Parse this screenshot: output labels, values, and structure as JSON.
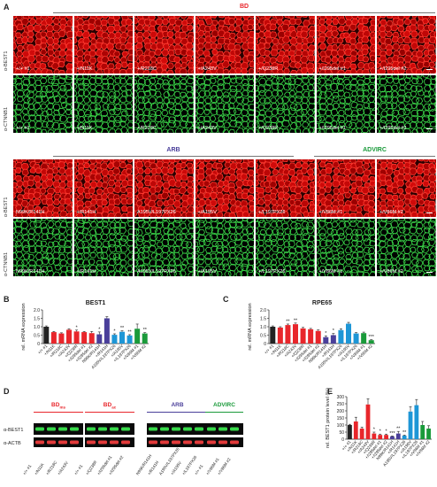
{
  "panel_a": {
    "letter": "A",
    "block1": {
      "group_label": "BD",
      "group_color": "#e8262b",
      "row_labels": [
        "α-BEST1",
        "α-CTNNB1"
      ],
      "tiles": [
        "+/+ #1",
        "+/N11K",
        "+/R218C",
        "+/A243V",
        "+/Q238R",
        "+/I295del #1",
        "+/I295del #2"
      ]
    },
    "block2": {
      "groups": [
        {
          "label": "ARB",
          "color": "#4a3f9a"
        },
        {
          "label": "ADVIRC",
          "color": "#1a9a3a"
        }
      ],
      "row_labels": [
        "α-BEST1",
        "α-CTNNB1"
      ],
      "tiles": [
        "N99K/R141H",
        "+/R141H",
        "A195V/L197PX26",
        "+/A195V",
        "+/L197PX26",
        "+/V86M #1",
        "+/V86M #2"
      ]
    }
  },
  "panel_b": {
    "letter": "B",
    "chart_data": {
      "type": "bar",
      "title": "BEST1",
      "ylabel": "rel. mRNA expression",
      "ylim": [
        0,
        2.0
      ],
      "yticks": [
        "0",
        "0.5",
        "1.0",
        "1.5",
        "2.0"
      ],
      "categories": [
        "+/+ #1",
        "+/N11K",
        "+/R218C",
        "+/A243V",
        "+/Q238R",
        "+/I295del #1",
        "+/I295del #2",
        "N99K/R141H",
        "+/R141H",
        "A195V/L197PX26",
        "+/A195V",
        "+/L197PX26",
        "+/V86M #1",
        "+/V86M #2"
      ],
      "values": [
        1.0,
        0.68,
        0.6,
        0.82,
        0.72,
        0.68,
        0.62,
        0.55,
        1.5,
        0.52,
        0.7,
        0.48,
        0.88,
        0.6
      ],
      "errors": [
        0.05,
        0.04,
        0.04,
        0.06,
        0.08,
        0.04,
        0.1,
        0.14,
        0.1,
        0.06,
        0.06,
        0.05,
        0.28,
        0.05
      ],
      "colors": [
        "#222222",
        "#e8262b",
        "#e8262b",
        "#e8262b",
        "#e8262b",
        "#e8262b",
        "#e8262b",
        "#4a3f9a",
        "#4a3f9a",
        "#1e96d6",
        "#1e96d6",
        "#1e96d6",
        "#1a9a3a",
        "#1a9a3a"
      ],
      "significance": [
        "",
        "",
        "",
        "",
        "*",
        "",
        "",
        "*",
        "",
        "*",
        "**",
        "**",
        "",
        "**"
      ]
    }
  },
  "panel_c": {
    "letter": "C",
    "chart_data": {
      "type": "bar",
      "title": "RPE65",
      "ylabel": "rel. mRNA expression",
      "ylim": [
        0,
        2.0
      ],
      "yticks": [
        "0",
        "0.5",
        "1.0",
        "1.5",
        "2.0"
      ],
      "categories": [
        "+/+ #1",
        "+/N11K",
        "+/R218C",
        "+/A243V",
        "+/Q238R",
        "+/I295del #1",
        "+/I295del #2",
        "N99K/R141H",
        "+/R141H",
        "A195V/L197PX26",
        "+/A195V",
        "+/L197PX26",
        "+/V86M #1",
        "+/V86M #2"
      ],
      "values": [
        1.0,
        0.95,
        1.1,
        1.15,
        0.9,
        0.85,
        0.75,
        0.38,
        0.5,
        0.8,
        1.18,
        0.6,
        0.62,
        0.2
      ],
      "errors": [
        0.05,
        0.05,
        0.06,
        0.07,
        0.06,
        0.05,
        0.06,
        0.08,
        0.1,
        0.08,
        0.08,
        0.05,
        0.06,
        0.03
      ],
      "colors": [
        "#222222",
        "#e8262b",
        "#e8262b",
        "#e8262b",
        "#e8262b",
        "#e8262b",
        "#e8262b",
        "#4a3f9a",
        "#4a3f9a",
        "#1e96d6",
        "#1e96d6",
        "#1e96d6",
        "#1a9a3a",
        "#1a9a3a"
      ],
      "significance": [
        "",
        "",
        "**",
        "**",
        "",
        "",
        "",
        "*",
        "*",
        "",
        "",
        "",
        "",
        "***"
      ]
    }
  },
  "panel_d": {
    "letter": "D",
    "groups": [
      {
        "label": "BD",
        "sub": "ms",
        "color": "#e8262b",
        "lanes": [
          "+/+ #1",
          "+/N11K",
          "+/R218C",
          "+/A243V"
        ]
      },
      {
        "label": "BD",
        "sub": "ac",
        "color": "#e8262b",
        "lanes": [
          "+/+ #1",
          "+/Q238R",
          "+/I295del #1",
          "+/I295del #2"
        ]
      },
      {
        "label": "ARB",
        "sub": "",
        "color": "#4a3f9a",
        "lanes": [
          "N99K/R141H",
          "+/R141H",
          "A195V/L197PX26",
          "+/A195V",
          "+/L197PX26"
        ]
      },
      {
        "label": "ADVIRC",
        "sub": "",
        "color": "#1a9a3a",
        "lanes": [
          "+/+ #1",
          "+/V86M #1",
          "+/V86M #2"
        ]
      }
    ],
    "row_labels": [
      "α-BEST1",
      "α-ACTB"
    ]
  },
  "panel_e": {
    "letter": "E",
    "chart_data": {
      "type": "bar",
      "title": "",
      "ylabel": "rel. BEST1 protein level (%)",
      "ylim": [
        0,
        300
      ],
      "yticks": [
        "0",
        "50",
        "100",
        "150",
        "200",
        "250",
        "300"
      ],
      "categories": [
        "+/+ #1",
        "+/N11K",
        "+/R218C",
        "+/A243V",
        "+/Q238R",
        "+/I295del #1",
        "+/I295del #2",
        "N99K/R141H",
        "+/R141H",
        "A195V/L197PX26",
        "+/A195V",
        "+/L197PX26",
        "+/V86M #1",
        "+/V86M #2"
      ],
      "values": [
        100,
        125,
        75,
        245,
        40,
        30,
        30,
        20,
        40,
        25,
        195,
        240,
        100,
        75
      ],
      "errors": [
        5,
        30,
        10,
        40,
        10,
        6,
        6,
        3,
        15,
        4,
        35,
        40,
        25,
        20
      ],
      "colors": [
        "#222222",
        "#e8262b",
        "#e8262b",
        "#e8262b",
        "#e8262b",
        "#e8262b",
        "#e8262b",
        "#4a3f9a",
        "#4a3f9a",
        "#1e96d6",
        "#1e96d6",
        "#1e96d6",
        "#1a9a3a",
        "#1a9a3a"
      ],
      "significance": [
        "",
        "",
        "",
        "",
        "*",
        "*",
        "*",
        "***",
        "**",
        "**",
        "",
        "",
        "",
        ""
      ]
    }
  }
}
